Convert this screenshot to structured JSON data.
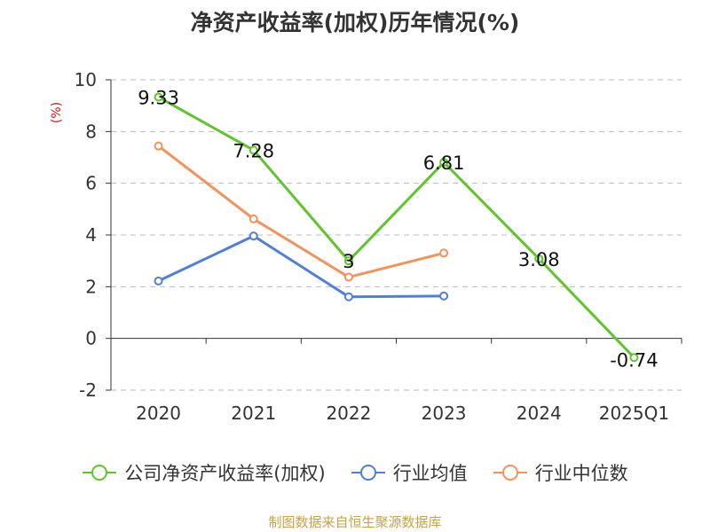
{
  "title": "净资产收益率(加权)历年情况(%)",
  "source": "制图数据来自恒生聚源数据库",
  "colors": {
    "axis": "#333333",
    "grid": "#bbbbbb",
    "unit": "#d11a1a"
  },
  "chart_data": {
    "type": "line",
    "categories": [
      "2020",
      "2021",
      "2022",
      "2023",
      "2024",
      "2025Q1"
    ],
    "yunit": "(%)",
    "ylim": [
      -2,
      10
    ],
    "yticks": [
      -2,
      0,
      2,
      4,
      6,
      8,
      10
    ],
    "grid": true,
    "legend_position": "bottom",
    "series": [
      {
        "name": "公司净资产收益率(加权)",
        "color": "#5ec52b",
        "values": [
          9.33,
          7.28,
          3,
          6.81,
          3.08,
          -0.74
        ],
        "labels": [
          "9.33",
          "7.28",
          "3",
          "6.81",
          "3.08",
          "-0.74"
        ]
      },
      {
        "name": "行业均值",
        "color": "#4f7fdb",
        "values": [
          2.22,
          3.96,
          1.61,
          1.64,
          null,
          null
        ]
      },
      {
        "name": "行业中位数",
        "color": "#f4925a",
        "values": [
          7.44,
          4.62,
          2.37,
          3.3,
          null,
          null
        ]
      }
    ]
  }
}
